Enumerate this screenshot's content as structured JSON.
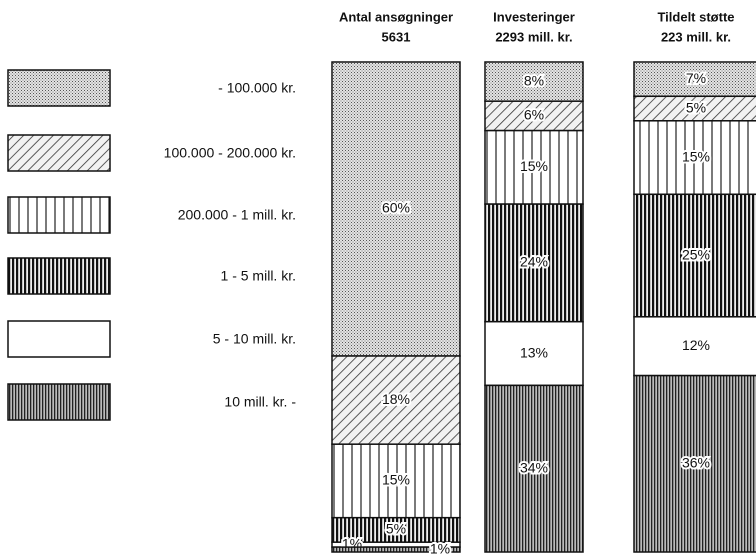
{
  "chart_data": {
    "type": "stacked-bar-100",
    "categories": [
      "Antal ansøgninger",
      "Investeringer",
      "Tildelt støtte"
    ],
    "category_totals": [
      "5631",
      "2293 mill. kr.",
      "223 mill. kr."
    ],
    "ylim": [
      0,
      100
    ],
    "series": [
      {
        "name": "- 100.000 kr.",
        "pattern": "dots",
        "values": [
          60,
          8,
          7
        ],
        "value_labels": [
          "60%",
          "8%",
          "7%"
        ]
      },
      {
        "name": "100.000 - 200.000 kr.",
        "pattern": "hatch",
        "values": [
          18,
          6,
          5
        ],
        "value_labels": [
          "18%",
          "6%",
          "5%"
        ]
      },
      {
        "name": "200.000 - 1 mill. kr.",
        "pattern": "vlines",
        "values": [
          15,
          15,
          15
        ],
        "value_labels": [
          "15%",
          "15%",
          "15%"
        ]
      },
      {
        "name": "1 - 5 mill. kr.",
        "pattern": "dense",
        "values": [
          5,
          24,
          25
        ],
        "value_labels": [
          "5%",
          "24%",
          "25%"
        ]
      },
      {
        "name": "5 - 10 mill. kr.",
        "pattern": "blank",
        "values": [
          1,
          13,
          12
        ],
        "value_labels": [
          "1%",
          "13%",
          "12%"
        ]
      },
      {
        "name": "10 mill. kr. -",
        "pattern": "fine",
        "values": [
          1,
          34,
          36
        ],
        "value_labels": [
          "1%",
          "34%",
          "36%"
        ]
      }
    ]
  }
}
